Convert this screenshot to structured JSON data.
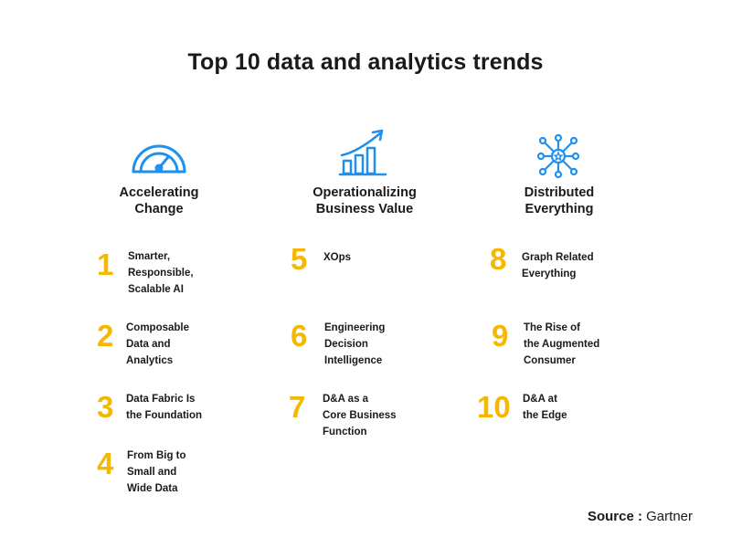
{
  "title": "Top 10 data and analytics trends",
  "accent_color": "#f5b800",
  "icon_color": "#1e90f0",
  "columns": [
    {
      "icon": "speedometer-icon",
      "heading": "Accelerating\nChange",
      "items": [
        {
          "number": "1",
          "text": "Smarter,\nResponsible,\nScalable AI"
        },
        {
          "number": "2",
          "text": "Composable\nData and\nAnalytics"
        },
        {
          "number": "3",
          "text": "Data Fabric Is\nthe Foundation"
        },
        {
          "number": "4",
          "text": "From Big to\nSmall and\nWide Data"
        }
      ]
    },
    {
      "icon": "growth-chart-icon",
      "heading": "Operationalizing\nBusiness Value",
      "items": [
        {
          "number": "5",
          "text": "XOps"
        },
        {
          "number": "6",
          "text": "Engineering\nDecision\nIntelligence"
        },
        {
          "number": "7",
          "text": "D&A as a\nCore Business\nFunction"
        }
      ]
    },
    {
      "icon": "network-hub-icon",
      "heading": "Distributed\nEverything",
      "items": [
        {
          "number": "8",
          "text": "Graph Related\nEverything"
        },
        {
          "number": "9",
          "text": "The Rise of\nthe Augmented\nConsumer"
        },
        {
          "number": "10",
          "text": "D&A at\nthe Edge"
        }
      ]
    }
  ],
  "source": {
    "label": "Source :",
    "value": "Gartner"
  }
}
